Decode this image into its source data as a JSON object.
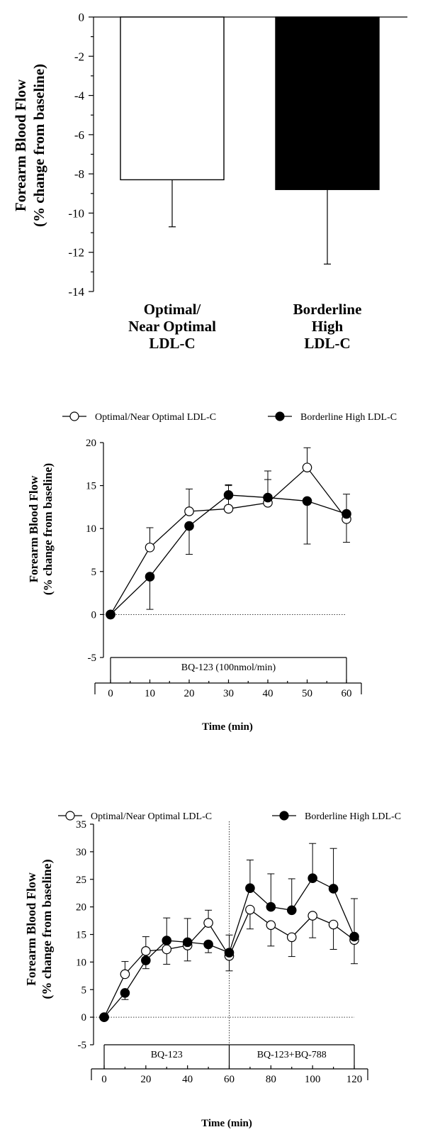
{
  "chart_data": [
    {
      "type": "bar",
      "ylabel_line1": "Forearm Blood Flow",
      "ylabel_line2": "(% change from baseline)",
      "ylim": [
        -14,
        0
      ],
      "yticks": [
        "0",
        "-2",
        "-4",
        "-6",
        "-8",
        "-10",
        "-12",
        "-14"
      ],
      "categories": [
        [
          "Optimal/",
          "Near  Optimal",
          "LDL-C"
        ],
        [
          "Borderline",
          "High",
          "LDL-C"
        ]
      ],
      "values": [
        -8.3,
        -8.8
      ],
      "errors": [
        2.4,
        3.8
      ],
      "fills": [
        "#ffffff",
        "#000000"
      ]
    },
    {
      "type": "line",
      "ylabel_line1": "Forearm Blood Flow",
      "ylabel_line2": "(% change from baseline)",
      "xlabel": "Time  (min)",
      "ylim": [
        -5,
        20
      ],
      "xlim": [
        0,
        60
      ],
      "yticks": [
        "-5",
        "0",
        "5",
        "10",
        "15",
        "20"
      ],
      "xticks": [
        "0",
        "10",
        "20",
        "30",
        "40",
        "50",
        "60"
      ],
      "series": [
        {
          "name": "Optimal/Near Optimal LDL-C",
          "marker": "open",
          "x": [
            0,
            10,
            20,
            30,
            40,
            50,
            60
          ],
          "y": [
            0,
            7.8,
            12.0,
            12.3,
            13.0,
            17.1,
            11.1
          ],
          "err": [
            0,
            2.3,
            2.6,
            2.7,
            3.7,
            2.3,
            2.7
          ]
        },
        {
          "name": "Borderline High LDL-C",
          "marker": "filled",
          "x": [
            0,
            10,
            20,
            30,
            40,
            50,
            60
          ],
          "y": [
            0,
            4.4,
            10.3,
            13.9,
            13.6,
            13.2,
            11.7
          ],
          "err": [
            0,
            3.8,
            3.3,
            1.2,
            2.1,
            5.0,
            2.3
          ]
        }
      ],
      "infusion_labels": [
        "BQ-123 (100nmol/min)"
      ]
    },
    {
      "type": "line",
      "ylabel_line1": "Forearm Blood Flow",
      "ylabel_line2": "(% change from baseline)",
      "xlabel": "Time  (min)",
      "ylim": [
        -5,
        35
      ],
      "xlim": [
        0,
        120
      ],
      "yticks": [
        "-5",
        "0",
        "5",
        "10",
        "15",
        "20",
        "25",
        "30",
        "35"
      ],
      "xticks": [
        "0",
        "20",
        "40",
        "60",
        "80",
        "100",
        "120"
      ],
      "series": [
        {
          "name": "Optimal/Near Optimal LDL-C",
          "marker": "open",
          "x": [
            0,
            10,
            20,
            30,
            40,
            50,
            60,
            70,
            80,
            90,
            100,
            110,
            120
          ],
          "y": [
            0,
            7.8,
            12.0,
            12.3,
            13.0,
            17.1,
            11.1,
            19.5,
            16.7,
            14.5,
            18.4,
            16.8,
            14.0
          ],
          "err": [
            0,
            2.3,
            2.6,
            2.7,
            2.8,
            2.3,
            2.7,
            3.5,
            3.8,
            3.5,
            4.0,
            4.5,
            4.3
          ]
        },
        {
          "name": "Borderline High LDL-C",
          "marker": "filled",
          "x": [
            0,
            10,
            20,
            30,
            40,
            50,
            60,
            70,
            80,
            90,
            100,
            110,
            120
          ],
          "y": [
            0,
            4.4,
            10.3,
            13.9,
            13.6,
            13.2,
            11.7,
            23.4,
            20.0,
            19.4,
            25.2,
            23.3,
            14.6
          ],
          "err": [
            0,
            1.2,
            1.5,
            4.1,
            4.3,
            1.5,
            3.2,
            5.1,
            6.0,
            5.7,
            6.3,
            7.3,
            6.9
          ]
        }
      ],
      "infusion_labels": [
        "BQ-123",
        "BQ-123+BQ-788"
      ]
    }
  ]
}
